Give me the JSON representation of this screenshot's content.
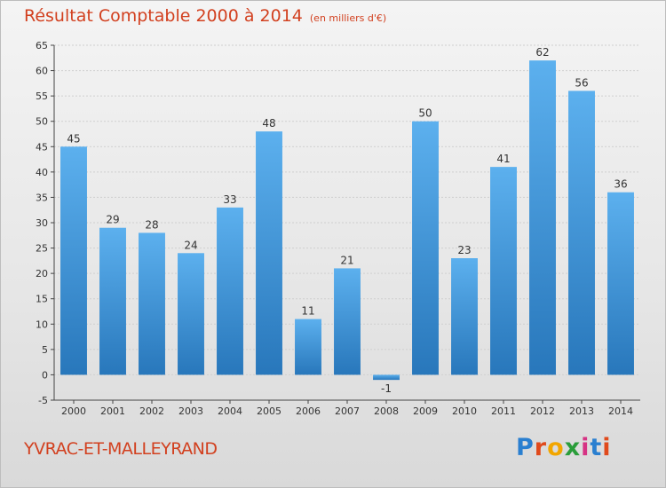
{
  "title": "Résultat Comptable 2000 à 2014",
  "title_unit": "(en milliers d'€)",
  "commune": "YVRAC-ET-MALLEYRAND",
  "logo": {
    "letters": [
      "P",
      "r",
      "o",
      "x",
      "i",
      "t",
      "i"
    ],
    "colors": [
      "#2a7fd0",
      "#e04a1c",
      "#f2a600",
      "#2a9d3a",
      "#d63384",
      "#2a7fd0",
      "#e04a1c"
    ]
  },
  "colors": {
    "bar": "#3f9be0",
    "bar_dark": "#2a78bd",
    "text": "#d2401f",
    "axis": "#333333"
  },
  "chart_data": {
    "type": "bar",
    "categories": [
      "2000",
      "2001",
      "2002",
      "2003",
      "2004",
      "2005",
      "2006",
      "2007",
      "2008",
      "2009",
      "2010",
      "2011",
      "2012",
      "2013",
      "2014"
    ],
    "values": [
      45,
      29,
      28,
      24,
      33,
      48,
      11,
      21,
      -1,
      50,
      23,
      41,
      62,
      56,
      36
    ],
    "data_labels": [
      "45",
      "29",
      "28",
      "24",
      "33",
      "48",
      "11",
      "21",
      "-1",
      "50",
      "23",
      "41",
      "62",
      "56",
      "36"
    ],
    "yticks": [
      -5,
      0,
      5,
      10,
      15,
      20,
      25,
      30,
      35,
      40,
      45,
      50,
      55,
      60,
      65
    ],
    "ytick_labels": [
      "-5",
      "0",
      "5",
      "10",
      "15",
      "20",
      "25",
      "30",
      "35",
      "40",
      "45",
      "50",
      "55",
      "60",
      "65"
    ],
    "ylim": [
      -5,
      65
    ],
    "grid": true
  }
}
